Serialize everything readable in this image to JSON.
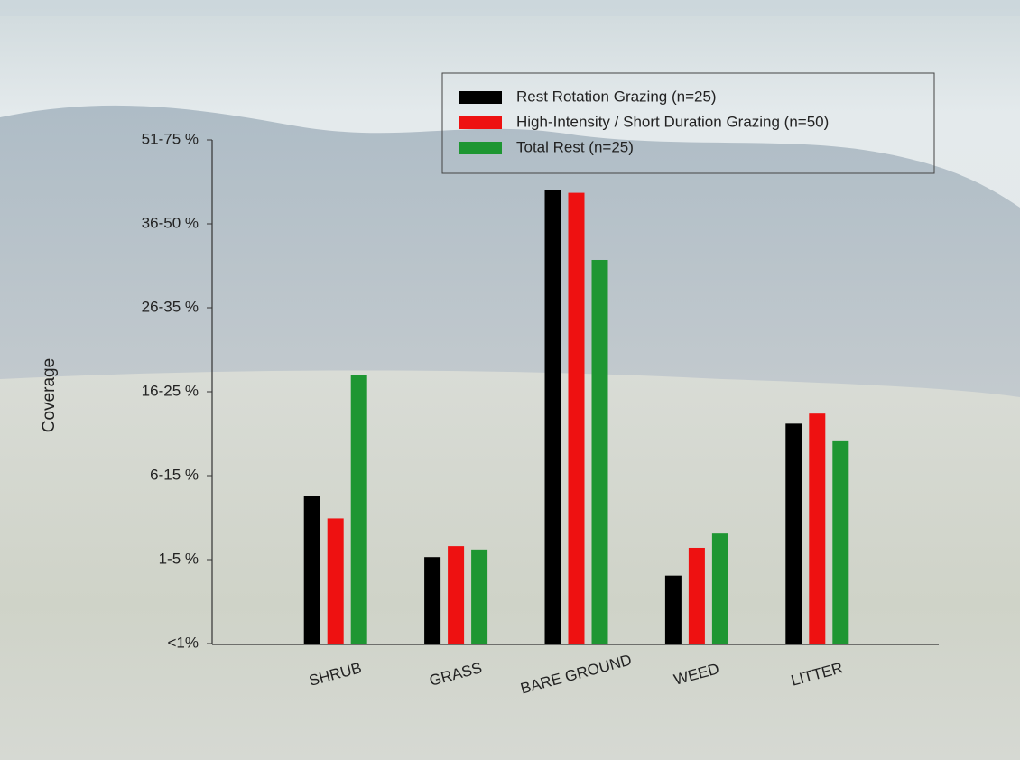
{
  "chart_data": {
    "type": "bar",
    "y_label": "Coverage",
    "categories": [
      "SHRUB",
      "GRASS",
      "BARE GROUND",
      "WEED",
      "LITTER"
    ],
    "series": [
      {
        "name": "Rest Rotation Grazing (n=25)",
        "color": "#000000",
        "values": [
          1.76,
          1.03,
          5.4,
          0.81,
          2.62
        ]
      },
      {
        "name": "High-Intensity / Short Duration Grazing (n=50)",
        "color": "#ee1111",
        "values": [
          1.49,
          1.16,
          5.37,
          1.14,
          2.74
        ]
      },
      {
        "name": "Total Rest (n=25)",
        "color": "#1e9632",
        "values": [
          3.2,
          1.12,
          4.57,
          1.31,
          2.41
        ]
      }
    ],
    "ylim": [
      0,
      6
    ],
    "yticks": [
      {
        "value": 0,
        "label": "<1%"
      },
      {
        "value": 1,
        "label": "1-5 %"
      },
      {
        "value": 2,
        "label": "6-15 %"
      },
      {
        "value": 3,
        "label": "16-25 %"
      },
      {
        "value": 4,
        "label": "26-35 %"
      },
      {
        "value": 5,
        "label": "36-50 %"
      },
      {
        "value": 6,
        "label": "51-75 %"
      }
    ],
    "grid": false,
    "legend": "top-right"
  }
}
